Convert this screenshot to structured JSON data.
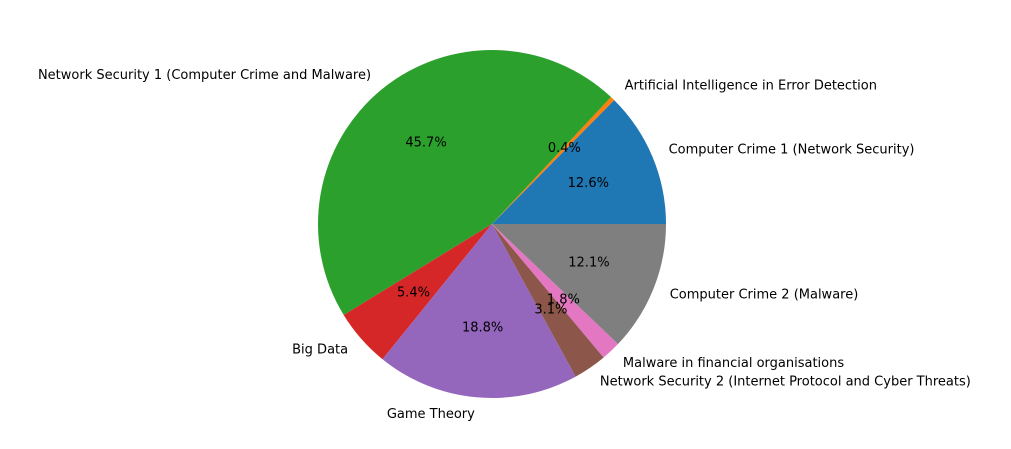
{
  "chart_data": {
    "type": "pie",
    "categories": [
      "Computer Crime 1 (Network Security)",
      "Artificial Intelligence in Error Detection",
      "Network Security 1  (Computer Crime and Malware)",
      "Big Data",
      "Game Theory",
      "Network Security 2  (Internet Protocol and Cyber Threats)",
      "Malware in financial organisations",
      "Computer Crime 2  (Malware)"
    ],
    "values": [
      12.6,
      0.4,
      45.7,
      5.4,
      18.8,
      3.1,
      1.8,
      12.1
    ],
    "percent_labels": [
      "12.6%",
      "0.4%",
      "45.7%",
      "5.4%",
      "18.8%",
      "3.1%",
      "1.8%",
      "12.1%"
    ],
    "colors": [
      "#1f77b4",
      "#ff7f0e",
      "#2ca02c",
      "#d62728",
      "#9467bd",
      "#8c564b",
      "#e377c2",
      "#7f7f7f"
    ],
    "start_angle_deg": 0,
    "direction": "counterclockwise",
    "legend": "none",
    "grid": false
  }
}
